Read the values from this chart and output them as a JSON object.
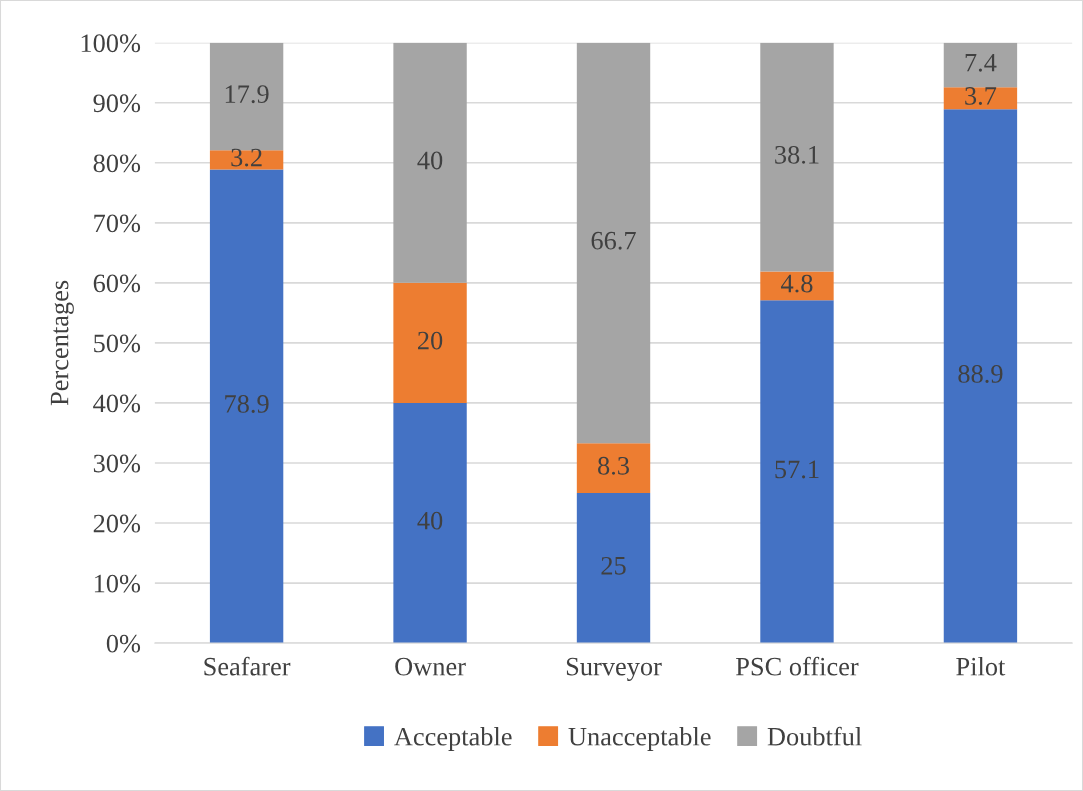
{
  "chart_data": {
    "type": "bar",
    "stacked": true,
    "ylabel": "Percentages",
    "categories": [
      "Seafarer",
      "Owner",
      "Surveyor",
      "PSC officer",
      "Pilot"
    ],
    "series": [
      {
        "name": "Acceptable",
        "color": "#4472c4",
        "values": [
          78.9,
          40,
          25,
          57.1,
          88.9
        ]
      },
      {
        "name": "Unacceptable",
        "color": "#ed7d31",
        "values": [
          3.2,
          20,
          8.3,
          4.8,
          3.7
        ]
      },
      {
        "name": "Doubtful",
        "color": "#a5a5a5",
        "values": [
          17.9,
          40,
          66.7,
          38.1,
          7.4
        ]
      }
    ],
    "ylim": [
      0,
      100
    ],
    "yticks": [
      {
        "value": 0,
        "label": "0%"
      },
      {
        "value": 10,
        "label": "10%"
      },
      {
        "value": 20,
        "label": "20%"
      },
      {
        "value": 30,
        "label": "30%"
      },
      {
        "value": 40,
        "label": "40%"
      },
      {
        "value": 50,
        "label": "50%"
      },
      {
        "value": 60,
        "label": "60%"
      },
      {
        "value": 70,
        "label": "70%"
      },
      {
        "value": 80,
        "label": "80%"
      },
      {
        "value": 90,
        "label": "90%"
      },
      {
        "value": 100,
        "label": "100%"
      }
    ],
    "grid": "y",
    "legend": "bottom",
    "data_labels": true
  }
}
